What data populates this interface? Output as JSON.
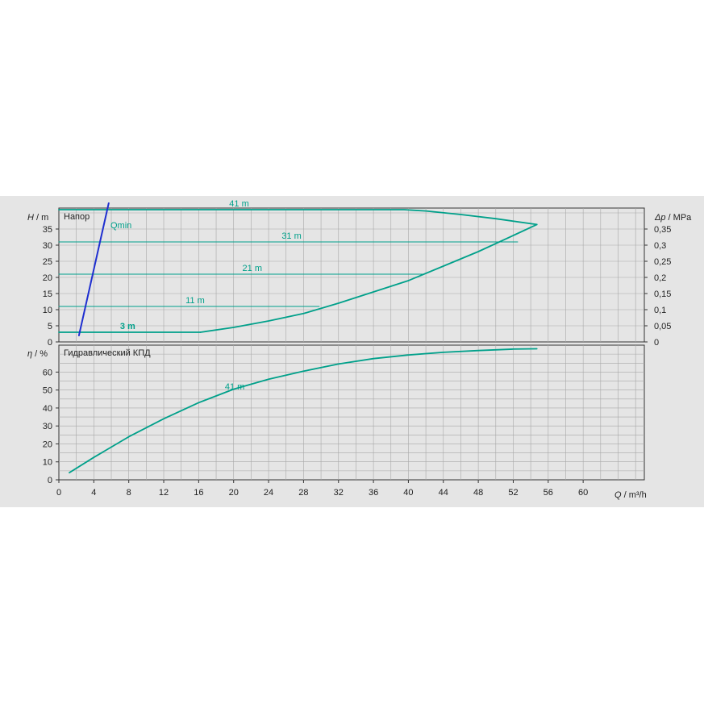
{
  "chart_data": [
    {
      "type": "line",
      "panel_title": "Напор",
      "ylabel_symbol": "H",
      "ylabel_unit": "m",
      "y2label_symbol": "Δp",
      "y2label_unit": "MPa",
      "xlim": [
        0,
        67
      ],
      "ylim": [
        0,
        41.5
      ],
      "yticks": [
        0,
        5,
        10,
        15,
        20,
        25,
        30,
        35
      ],
      "y2ticks": [
        "0",
        "0,05",
        "0,1",
        "0,15",
        "0,2",
        "0,25",
        "0,3",
        "0,35"
      ],
      "grid": true,
      "series": [
        {
          "name": "41 m",
          "x": [
            0,
            39.5,
            42,
            46,
            50,
            54.7
          ],
          "y": [
            41,
            41,
            40.6,
            39.5,
            38.2,
            36.4
          ]
        },
        {
          "name": "31 m",
          "x": [
            0,
            52.5
          ],
          "y": [
            31,
            31
          ]
        },
        {
          "name": "21 m",
          "x": [
            0,
            41.8
          ],
          "y": [
            21,
            21
          ]
        },
        {
          "name": "11 m",
          "x": [
            0,
            29.8
          ],
          "y": [
            11,
            11
          ]
        },
        {
          "name": "3 m",
          "x": [
            0,
            16.2
          ],
          "y": [
            3,
            3
          ]
        },
        {
          "name": "",
          "x": [
            16.2,
            20,
            24,
            28,
            32,
            36,
            40,
            44,
            48,
            52,
            54.7
          ],
          "y": [
            3,
            4.5,
            6.5,
            8.8,
            12,
            15.5,
            19,
            23.5,
            28,
            33,
            36.4
          ]
        }
      ],
      "qmin": {
        "label": "Qmin",
        "x": [
          2.3,
          5.7
        ],
        "y": [
          2,
          43
        ]
      },
      "labels": [
        {
          "text": "41 m",
          "x": 19.5,
          "y": 41.5
        },
        {
          "text": "31 m",
          "x": 25.5,
          "y": 31.5
        },
        {
          "text": "21 m",
          "x": 21,
          "y": 21.5
        },
        {
          "text": "11 m",
          "x": 14.5,
          "y": 11.5
        },
        {
          "text": "3 m",
          "x": 7,
          "y": 3.5
        }
      ],
      "colors": {
        "curve": "#00a08a",
        "qmin": "#1f2fd0",
        "grid": "#a8a8a8"
      }
    },
    {
      "type": "line",
      "panel_title": "Гидравлический КПД",
      "ylabel_symbol": "η",
      "ylabel_unit": "%",
      "xlabel_symbol": "Q",
      "xlabel_unit": "m³/h",
      "xlim": [
        0,
        67
      ],
      "ylim": [
        0,
        75
      ],
      "yticks": [
        0,
        10,
        20,
        30,
        40,
        50,
        60
      ],
      "xticks": [
        0,
        4,
        8,
        12,
        16,
        20,
        24,
        28,
        32,
        36,
        40,
        44,
        48,
        52,
        56,
        60
      ],
      "grid": true,
      "series": [
        {
          "name": "41 m",
          "x": [
            1.2,
            4,
            8,
            12,
            16,
            20,
            24,
            28,
            32,
            36,
            40,
            44,
            48,
            52,
            54.7
          ],
          "y": [
            4,
            12.5,
            24,
            34,
            43,
            50.5,
            56,
            60.5,
            64.5,
            67.5,
            69.5,
            71,
            72,
            72.8,
            73
          ]
        }
      ],
      "labels": [
        {
          "text": "41 m",
          "x": 19,
          "y": 52
        }
      ],
      "colors": {
        "curve": "#00a08a",
        "grid": "#a8a8a8"
      }
    }
  ]
}
